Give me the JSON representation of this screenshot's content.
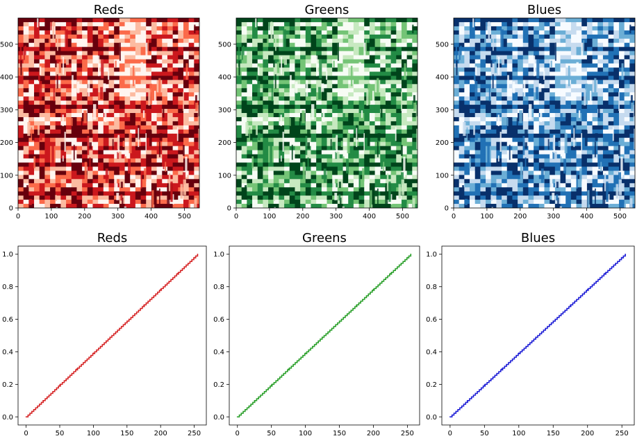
{
  "chart_data": [
    {
      "type": "heatmap",
      "title": "Reds",
      "colormap": "Reds",
      "xlim": [
        0,
        545
      ],
      "ylim": [
        580,
        0
      ],
      "xticks": [
        0,
        100,
        200,
        300,
        400,
        500
      ],
      "yticks": [
        0,
        100,
        200,
        300,
        400,
        500
      ],
      "grid": false
    },
    {
      "type": "heatmap",
      "title": "Greens",
      "colormap": "Greens",
      "xlim": [
        0,
        545
      ],
      "ylim": [
        580,
        0
      ],
      "xticks": [
        0,
        100,
        200,
        300,
        400,
        500
      ],
      "yticks": [
        0,
        100,
        200,
        300,
        400,
        500
      ],
      "grid": false
    },
    {
      "type": "heatmap",
      "title": "Blues",
      "colormap": "Blues",
      "xlim": [
        0,
        545
      ],
      "ylim": [
        580,
        0
      ],
      "xticks": [
        0,
        100,
        200,
        300,
        400,
        500
      ],
      "yticks": [
        0,
        100,
        200,
        300,
        400,
        500
      ],
      "grid": false
    },
    {
      "type": "line",
      "title": "Reds",
      "color": "#d62728",
      "x": [
        0,
        25,
        50,
        75,
        100,
        125,
        150,
        175,
        200,
        225,
        250,
        255
      ],
      "y": [
        0.0,
        0.098,
        0.196,
        0.294,
        0.392,
        0.49,
        0.588,
        0.686,
        0.784,
        0.882,
        0.98,
        1.0
      ],
      "xlim": [
        -12,
        268
      ],
      "ylim": [
        -0.05,
        1.05
      ],
      "xticks": [
        0,
        50,
        100,
        150,
        200,
        250
      ],
      "yticks": [
        0.0,
        0.2,
        0.4,
        0.6,
        0.8,
        1.0
      ],
      "grid": false
    },
    {
      "type": "line",
      "title": "Greens",
      "color": "#2ca02c",
      "x": [
        0,
        25,
        50,
        75,
        100,
        125,
        150,
        175,
        200,
        225,
        250,
        255
      ],
      "y": [
        0.0,
        0.098,
        0.196,
        0.294,
        0.392,
        0.49,
        0.588,
        0.686,
        0.784,
        0.882,
        0.98,
        1.0
      ],
      "xlim": [
        -12,
        268
      ],
      "ylim": [
        -0.05,
        1.05
      ],
      "xticks": [
        0,
        50,
        100,
        150,
        200,
        250
      ],
      "yticks": [
        0.0,
        0.2,
        0.4,
        0.6,
        0.8,
        1.0
      ],
      "grid": false
    },
    {
      "type": "line",
      "title": "Blues",
      "color": "#1f1fd6",
      "x": [
        0,
        25,
        50,
        75,
        100,
        125,
        150,
        175,
        200,
        225,
        250,
        255
      ],
      "y": [
        0.0,
        0.098,
        0.196,
        0.294,
        0.392,
        0.49,
        0.588,
        0.686,
        0.784,
        0.882,
        0.98,
        1.0
      ],
      "xlim": [
        -12,
        268
      ],
      "ylim": [
        -0.05,
        1.05
      ],
      "xticks": [
        0,
        50,
        100,
        150,
        200,
        250
      ],
      "yticks": [
        0.0,
        0.2,
        0.4,
        0.6,
        0.8,
        1.0
      ],
      "grid": false
    }
  ],
  "colormaps": {
    "Reds": [
      "#fff5f0",
      "#fcbba1",
      "#fb6a4a",
      "#cb181d",
      "#67000d"
    ],
    "Greens": [
      "#f7fcf5",
      "#c7e9c0",
      "#74c476",
      "#238b45",
      "#00441b"
    ],
    "Blues": [
      "#f7fbff",
      "#c6dbef",
      "#6baed6",
      "#2171b5",
      "#08306b"
    ]
  }
}
